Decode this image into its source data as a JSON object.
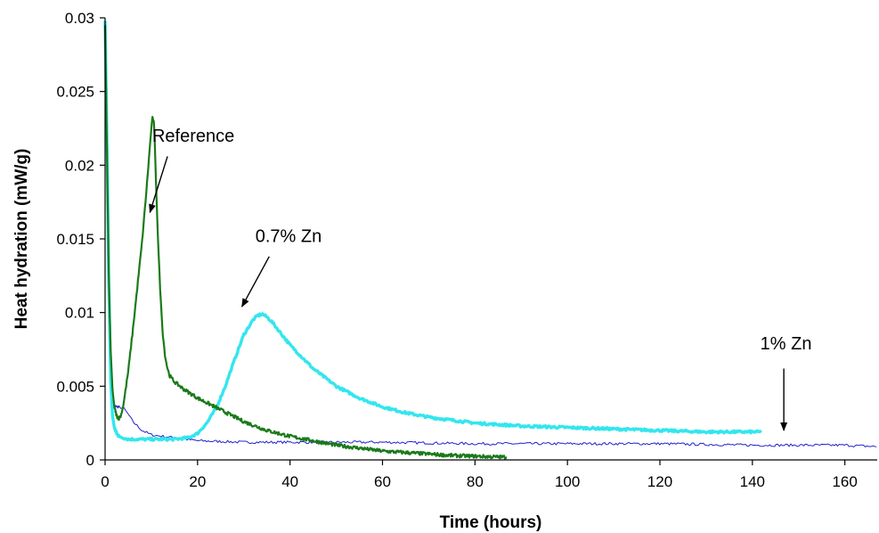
{
  "chart_data": {
    "type": "line",
    "title": "",
    "xlabel": "Time (hours)",
    "ylabel": "Heat hydration (mW/g)",
    "xlim": [
      0,
      167
    ],
    "ylim": [
      0,
      0.03
    ],
    "x_ticks": [
      "0",
      "20",
      "40",
      "60",
      "80",
      "100",
      "120",
      "140",
      "160"
    ],
    "y_ticks": [
      "0",
      "0.005",
      "0.01",
      "0.015",
      "0.02",
      "0.025",
      "0.03"
    ],
    "grid": false,
    "legend": "none",
    "series": [
      {
        "name": "Reference",
        "color": "#1a7a1a",
        "x": [
          0,
          0.4,
          0.8,
          1.2,
          1.6,
          2,
          2.5,
          3,
          3.5,
          4,
          5,
          6,
          7,
          8,
          9,
          9.5,
          10,
          10.3,
          10.6,
          11,
          11.5,
          12,
          12.5,
          13,
          13.5,
          14,
          14.5,
          15,
          17,
          20,
          25,
          30,
          35,
          40,
          45,
          50,
          55,
          60,
          65,
          70,
          75,
          80,
          85,
          87
        ],
        "y": [
          0.0295,
          0.021,
          0.0125,
          0.0075,
          0.0048,
          0.0036,
          0.003,
          0.0028,
          0.0031,
          0.0038,
          0.006,
          0.0088,
          0.0118,
          0.0148,
          0.0185,
          0.0205,
          0.0225,
          0.0233,
          0.0228,
          0.019,
          0.0145,
          0.011,
          0.0085,
          0.007,
          0.0062,
          0.0057,
          0.0055,
          0.0053,
          0.0048,
          0.0042,
          0.0034,
          0.0026,
          0.002,
          0.0016,
          0.0013,
          0.001,
          0.0008,
          0.0006,
          0.0005,
          0.0004,
          0.0003,
          0.00025,
          0.0002,
          0.0002
        ]
      },
      {
        "name": "0.7% Zn",
        "color": "#33e6ee",
        "x": [
          0,
          0.4,
          0.8,
          1.2,
          1.6,
          2,
          2.5,
          3,
          4,
          5,
          7,
          10,
          15,
          18,
          20,
          22,
          24,
          26,
          28,
          30,
          32,
          33,
          34,
          35,
          36,
          38,
          40,
          45,
          50,
          55,
          60,
          65,
          70,
          80,
          90,
          100,
          110,
          120,
          130,
          142
        ],
        "y": [
          0.0298,
          0.022,
          0.012,
          0.0055,
          0.003,
          0.0022,
          0.0018,
          0.0016,
          0.0015,
          0.0014,
          0.0014,
          0.0014,
          0.0014,
          0.0015,
          0.0018,
          0.0025,
          0.0035,
          0.005,
          0.0068,
          0.0085,
          0.0095,
          0.0098,
          0.0099,
          0.0097,
          0.0094,
          0.0086,
          0.0078,
          0.0062,
          0.005,
          0.0042,
          0.0036,
          0.0032,
          0.0029,
          0.0025,
          0.0023,
          0.0022,
          0.0021,
          0.002,
          0.0019,
          0.0019
        ]
      },
      {
        "name": "1% Zn",
        "color": "#2222cc",
        "x": [
          0,
          0.4,
          0.8,
          1.2,
          1.6,
          2,
          2.5,
          3,
          4,
          5,
          6,
          8,
          10,
          15,
          20,
          30,
          40,
          60,
          80,
          100,
          120,
          140,
          160,
          167
        ],
        "y": [
          0.027,
          0.018,
          0.0095,
          0.0055,
          0.0042,
          0.0037,
          0.0036,
          0.0036,
          0.0035,
          0.0031,
          0.0026,
          0.002,
          0.0017,
          0.0015,
          0.0013,
          0.0012,
          0.0012,
          0.0012,
          0.0011,
          0.0011,
          0.0011,
          0.001,
          0.001,
          0.0009
        ]
      }
    ],
    "annotations": [
      {
        "text": "Reference",
        "arrow_from": [
          13.5,
          0.0206
        ],
        "arrow_to": [
          9.7,
          0.0168
        ],
        "text_at": [
          10.2,
          0.0216
        ]
      },
      {
        "text": "0.7% Zn",
        "arrow_from": [
          35.5,
          0.0138
        ],
        "arrow_to": [
          29.6,
          0.0104
        ],
        "text_at": [
          32.5,
          0.0148
        ]
      },
      {
        "text": "1% Zn",
        "arrow_from": [
          146.8,
          0.0062
        ],
        "arrow_to": [
          146.8,
          0.002
        ],
        "text_at": [
          141.7,
          0.0075
        ]
      }
    ]
  }
}
